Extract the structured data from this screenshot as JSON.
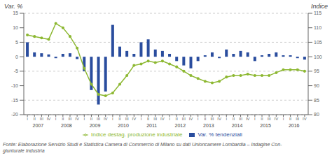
{
  "chart_data": {
    "type": "bar",
    "y_label": "Var. %",
    "y2_label": "Indice",
    "categories": [
      "I",
      "II",
      "III",
      "IV",
      "I",
      "II",
      "III",
      "IV",
      "I",
      "II",
      "III",
      "IV",
      "I",
      "II",
      "III",
      "IV",
      "I",
      "II",
      "III",
      "IV",
      "I",
      "II",
      "III",
      "IV",
      "I",
      "II",
      "III",
      "IV",
      "I",
      "II",
      "III",
      "IV",
      "I",
      "II",
      "III",
      "IV",
      "I",
      "II",
      "III",
      "IV"
    ],
    "category_groups": [
      "2007",
      "2008",
      "2009",
      "2010",
      "2011",
      "2012",
      "2013",
      "2014",
      "2015",
      "2016"
    ],
    "series": [
      {
        "name": "Var. % tendenziali",
        "type": "bar",
        "color": "#2a4d9e",
        "values": [
          5.0,
          1.5,
          1.2,
          0.8,
          -0.5,
          1.0,
          1.2,
          -0.8,
          -5.0,
          -11.5,
          -16.5,
          -12.0,
          11.0,
          3.5,
          2.0,
          1.0,
          5.0,
          6.0,
          2.5,
          2.0,
          1.0,
          -1.5,
          -3.0,
          -4.0,
          -1.5,
          0.5,
          1.5,
          -0.5,
          2.5,
          1.0,
          2.0,
          1.5,
          -1.5,
          0.5,
          1.0,
          1.5,
          0.5,
          0.5,
          -0.5,
          -1.0
        ]
      },
      {
        "name": "Indice destag. produzione industriale",
        "type": "line",
        "color": "#8db832",
        "marker": "circle",
        "axis": "y2",
        "values": [
          107.5,
          107.0,
          106.5,
          106.0,
          111.5,
          110.0,
          107.0,
          103.0,
          96.0,
          90.5,
          87.0,
          86.5,
          87.5,
          90.5,
          93.5,
          97.0,
          97.5,
          98.5,
          98.0,
          98.5,
          97.5,
          96.5,
          95.0,
          93.5,
          92.5,
          91.5,
          91.0,
          91.5,
          93.0,
          93.5,
          93.5,
          94.0,
          93.5,
          93.5,
          93.5,
          94.5,
          95.5,
          95.5,
          95.5,
          95.0
        ]
      }
    ],
    "ylim": [
      -20,
      15
    ],
    "yticks": [
      -20,
      -15,
      -10,
      -5,
      0,
      5,
      10,
      15
    ],
    "y2lim": [
      80,
      115
    ],
    "y2ticks": [
      80,
      85,
      90,
      95,
      100,
      105,
      110,
      115
    ],
    "grid": true,
    "legend": "bottom",
    "annotations": [
      "Fonte: Elaborazione Servizio Studi e Statistica Camera di Commercio di Milano su dati Unioncamere Lombardia – Indagine Con-\ngiunturale Industria"
    ]
  }
}
